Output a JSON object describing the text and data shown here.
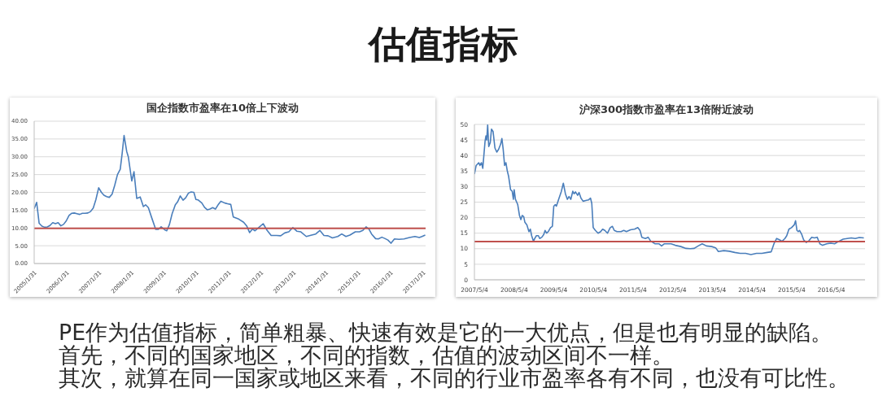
{
  "chart_data": [
    {
      "type": "other",
      "title": "估值指标"
    },
    {
      "type": "line",
      "title": "国企指数市盈率在10倍上下波动",
      "color": "#4a7ebb",
      "x": [
        "2005-01-31",
        "2005-02-28",
        "2005-03-28",
        "2005-04-28",
        "2005-05-28",
        "2005-06-28",
        "2005-07-28",
        "2005-08-28",
        "2005-09-28",
        "2005-10-28",
        "2005-11-28",
        "2005-12-28",
        "2006-01-28",
        "2006-02-28",
        "2006-03-28",
        "2006-04-28",
        "2006-05-28",
        "2006-06-28",
        "2006-07-28",
        "2006-08-28",
        "2006-09-28",
        "2006-10-28",
        "2006-11-28",
        "2006-12-28",
        "2007-01-28",
        "2007-02-28",
        "2007-03-28",
        "2007-04-28",
        "2007-05-28",
        "2007-06-28",
        "2007-07-28",
        "2007-08-28",
        "2007-09-28",
        "2007-10-20",
        "2007-11-10",
        "2007-12-10",
        "2007-12-28",
        "2008-02-05",
        "2008-03-01",
        "2008-04-01",
        "2008-05-10",
        "2008-06-15",
        "2008-07-10",
        "2008-08-10",
        "2008-09-15",
        "2008-11-01",
        "2008-12-01",
        "2009-01-01",
        "2009-02-15",
        "2009-03-05",
        "2009-04-05",
        "2009-05-05",
        "2009-06-10",
        "2009-07-05",
        "2009-08-05",
        "2009-09-05",
        "2009-10-05",
        "2009-11-05",
        "2009-12-05",
        "2010-01-05",
        "2010-01-28",
        "2010-02-20",
        "2010-04-05",
        "2010-05-05",
        "2010-06-05",
        "2010-07-05",
        "2010-08-05",
        "2010-09-05",
        "2010-10-05",
        "2010-11-05",
        "2010-12-20",
        "2011-01-20",
        "2011-02-25",
        "2011-03-25",
        "2011-05-25",
        "2011-07-20",
        "2011-08-25",
        "2011-09-25",
        "2011-10-28",
        "2011-11-25",
        "2012-01-05",
        "2012-02-25",
        "2012-04-10",
        "2012-05-25",
        "2012-07-25",
        "2012-09-10",
        "2012-10-25",
        "2012-12-10",
        "2013-01-25",
        "2013-03-10",
        "2013-04-25",
        "2013-06-25",
        "2013-08-25",
        "2013-10-10",
        "2013-11-25",
        "2014-01-10",
        "2014-02-25",
        "2014-04-15",
        "2014-06-15",
        "2014-07-30",
        "2014-09-15",
        "2014-10-30",
        "2014-12-30",
        "2015-02-15",
        "2015-03-25",
        "2015-04-30",
        "2015-06-01",
        "2015-07-01",
        "2015-08-15",
        "2015-09-15",
        "2015-10-25",
        "2015-12-01",
        "2016-01-01",
        "2016-02-05",
        "2016-03-15",
        "2016-05-05",
        "2016-07-01",
        "2016-09-01",
        "2016-11-01",
        "2016-12-20",
        "2017-01-20",
        "2017-02-25"
      ],
      "values": [
        15.4,
        17.2,
        11.3,
        10.5,
        10.2,
        10.3,
        10.7,
        11.5,
        11.2,
        11.5,
        10.6,
        11.0,
        12.0,
        13.5,
        14.1,
        14.2,
        14.0,
        13.8,
        14.1,
        14.1,
        14.2,
        14.6,
        15.6,
        18.0,
        21.3,
        20.0,
        19.2,
        18.8,
        18.6,
        19.5,
        22.0,
        25.0,
        26.5,
        31.0,
        36.0,
        31.5,
        30.0,
        23.2,
        25.8,
        18.3,
        18.7,
        16.0,
        16.5,
        15.7,
        13.0,
        9.6,
        9.6,
        10.3,
        9.4,
        9.2,
        11.0,
        14.0,
        16.5,
        17.3,
        19.0,
        17.8,
        18.5,
        19.8,
        20.1,
        20.0,
        18.0,
        17.9,
        17.0,
        15.8,
        15.1,
        15.3,
        15.7,
        15.3,
        16.5,
        17.5,
        17.0,
        16.8,
        16.6,
        13.1,
        12.5,
        11.6,
        10.5,
        8.7,
        9.7,
        9.2,
        10.1,
        11.2,
        9.3,
        7.9,
        7.9,
        7.8,
        8.6,
        8.9,
        10.1,
        9.1,
        8.9,
        7.6,
        8.0,
        8.3,
        9.3,
        7.9,
        7.8,
        7.2,
        7.6,
        8.3,
        7.6,
        8.0,
        8.9,
        8.9,
        9.3,
        10.3,
        9.7,
        8.3,
        7.0,
        6.9,
        7.4,
        7.0,
        6.6,
        5.7,
        6.9,
        6.8,
        6.9,
        7.3,
        7.6,
        7.3,
        7.6,
        8.0
      ],
      "xlim": [
        "2005-01-31",
        "2017-03-01"
      ],
      "xticks": [
        {
          "value": "2005-01-31",
          "label": "2005/1/31"
        },
        {
          "value": "2006-01-31",
          "label": "2006/1/31"
        },
        {
          "value": "2007-01-31",
          "label": "2007/1/31"
        },
        {
          "value": "2008-01-31",
          "label": "2008/1/31"
        },
        {
          "value": "2009-01-31",
          "label": "2009/1/31"
        },
        {
          "value": "2010-01-31",
          "label": "2010/1/31"
        },
        {
          "value": "2011-01-31",
          "label": "2011/1/31"
        },
        {
          "value": "2012-01-31",
          "label": "2012/1/31"
        },
        {
          "value": "2013-01-31",
          "label": "2013/1/31"
        },
        {
          "value": "2014-01-31",
          "label": "2014/1/31"
        },
        {
          "value": "2015-01-31",
          "label": "2015/1/31"
        },
        {
          "value": "2016-01-31",
          "label": "2016/1/31"
        },
        {
          "value": "2017-01-31",
          "label": "2017/1/31"
        }
      ],
      "ylim": [
        0,
        40
      ],
      "yticks": [
        {
          "value": 0,
          "label": "0.00"
        },
        {
          "value": 5,
          "label": "5.00"
        },
        {
          "value": 10,
          "label": "10.00"
        },
        {
          "value": 15,
          "label": "15.00"
        },
        {
          "value": 20,
          "label": "20.00"
        },
        {
          "value": 25,
          "label": "25.00"
        },
        {
          "value": 30,
          "label": "30.00"
        },
        {
          "value": 35,
          "label": "35.00"
        },
        {
          "value": 40,
          "label": "40.00"
        }
      ],
      "grid": "y",
      "ref_lines": [
        {
          "axis": "y",
          "value": 9.9,
          "color": "#c0504d"
        }
      ]
    },
    {
      "type": "line",
      "title": "沪深300指数市盈率在13倍附近波动",
      "color": "#4a7ebb",
      "x": [
        "2007-05-04",
        "2007-05-20",
        "2007-06-13",
        "2007-06-24",
        "2007-07-08",
        "2007-07-20",
        "2007-08-10",
        "2007-08-18",
        "2007-08-25",
        "2007-09-03",
        "2007-09-13",
        "2007-09-27",
        "2007-10-08",
        "2007-10-23",
        "2007-11-09",
        "2007-11-26",
        "2007-12-13",
        "2008-01-01",
        "2008-01-12",
        "2008-01-24",
        "2008-02-06",
        "2008-02-18",
        "2008-03-02",
        "2008-03-14",
        "2008-04-01",
        "2008-04-16",
        "2008-04-27",
        "2008-05-04",
        "2008-05-16",
        "2008-06-06",
        "2008-06-22",
        "2008-07-05",
        "2008-07-17",
        "2008-07-31",
        "2008-08-11",
        "2008-08-29",
        "2008-09-17",
        "2008-09-30",
        "2008-10-12",
        "2008-10-29",
        "2008-11-10",
        "2008-11-25",
        "2008-12-13",
        "2008-12-25",
        "2009-01-14",
        "2009-02-01",
        "2009-02-13",
        "2009-02-27",
        "2009-03-14",
        "2009-04-04",
        "2009-04-21",
        "2009-05-04",
        "2009-05-18",
        "2009-05-28",
        "2009-06-18",
        "2009-07-13",
        "2009-07-31",
        "2009-08-19",
        "2009-09-06",
        "2009-09-21",
        "2009-10-08",
        "2009-10-26",
        "2009-11-07",
        "2009-11-20",
        "2009-12-10",
        "2009-12-23",
        "2010-01-09",
        "2010-01-29",
        "2010-02-23",
        "2010-03-20",
        "2010-04-07",
        "2010-04-19",
        "2010-05-02",
        "2010-05-22",
        "2010-06-16",
        "2010-07-10",
        "2010-07-28",
        "2010-08-17",
        "2010-09-11",
        "2010-10-06",
        "2010-10-26",
        "2010-11-12",
        "2010-12-07",
        "2011-01-14",
        "2011-02-08",
        "2011-03-04",
        "2011-04-11",
        "2011-05-18",
        "2011-06-17",
        "2011-07-07",
        "2011-07-24",
        "2011-08-26",
        "2011-09-20",
        "2011-10-15",
        "2011-11-21",
        "2011-12-28",
        "2012-01-22",
        "2012-02-17",
        "2012-03-13",
        "2012-04-19",
        "2012-05-27",
        "2012-07-17",
        "2012-09-03",
        "2012-10-12",
        "2012-11-18",
        "2012-12-24",
        "2013-01-30",
        "2013-03-10",
        "2013-04-28",
        "2013-06-03",
        "2013-06-28",
        "2013-08-17",
        "2013-10-07",
        "2013-11-26",
        "2014-01-15",
        "2014-03-06",
        "2014-04-24",
        "2014-06-14",
        "2014-08-03",
        "2014-09-21",
        "2014-10-28",
        "2014-11-22",
        "2014-12-17",
        "2015-01-11",
        "2015-02-05",
        "2015-03-03",
        "2015-03-20",
        "2015-04-09",
        "2015-05-03",
        "2015-05-28",
        "2015-06-09",
        "2015-06-22",
        "2015-07-04",
        "2015-07-16",
        "2015-08-05",
        "2015-08-22",
        "2015-09-16",
        "2015-10-11",
        "2015-11-05",
        "2015-11-30",
        "2015-12-25",
        "2016-01-19",
        "2016-02-13",
        "2016-03-22",
        "2016-04-29",
        "2016-06-05",
        "2016-07-12",
        "2016-08-21",
        "2016-09-27",
        "2016-11-03",
        "2016-12-10",
        "2017-01-16",
        "2017-02-27"
      ],
      "values": [
        34.0,
        36.8,
        37.7,
        36.8,
        37.7,
        35.9,
        44.6,
        46.3,
        45.0,
        49.8,
        42.9,
        44.2,
        48.5,
        47.7,
        42.4,
        41.1,
        42.0,
        43.7,
        45.5,
        42.0,
        36.8,
        37.7,
        35.0,
        33.3,
        29.0,
        28.5,
        25.9,
        29.0,
        25.9,
        24.2,
        20.7,
        19.4,
        20.7,
        20.3,
        18.5,
        17.7,
        15.5,
        16.3,
        14.2,
        12.4,
        13.3,
        14.2,
        14.2,
        13.3,
        13.7,
        14.6,
        15.9,
        15.0,
        15.5,
        16.8,
        17.2,
        23.7,
        24.2,
        23.7,
        25.9,
        28.5,
        31.1,
        27.7,
        25.9,
        26.8,
        25.9,
        28.5,
        27.7,
        28.3,
        27.2,
        28.1,
        26.3,
        25.3,
        25.5,
        25.7,
        26.3,
        24.6,
        16.8,
        15.9,
        15.0,
        15.5,
        16.3,
        15.9,
        15.0,
        16.8,
        17.2,
        15.9,
        15.5,
        15.5,
        15.9,
        15.5,
        16.1,
        16.3,
        16.8,
        15.9,
        13.7,
        13.3,
        13.7,
        12.4,
        11.6,
        11.6,
        10.9,
        11.6,
        11.6,
        11.6,
        11.1,
        10.7,
        10.1,
        10.0,
        10.1,
        10.9,
        11.6,
        10.9,
        10.7,
        10.3,
        9.1,
        9.4,
        9.2,
        8.8,
        8.5,
        8.5,
        8.1,
        8.5,
        8.5,
        8.8,
        9.0,
        11.6,
        13.3,
        12.9,
        12.4,
        13.3,
        14.2,
        16.3,
        16.8,
        17.7,
        19.0,
        15.9,
        15.5,
        15.9,
        14.6,
        12.9,
        12.0,
        12.6,
        13.7,
        13.5,
        13.7,
        11.6,
        11.1,
        11.6,
        11.8,
        11.6,
        12.4,
        13.1,
        13.3,
        13.5,
        13.3,
        13.6,
        13.5
      ],
      "xlim": [
        "2007-05-04",
        "2017-03-10"
      ],
      "xticks": [
        {
          "value": "2007-05-04",
          "label": "2007/5/4"
        },
        {
          "value": "2008-05-04",
          "label": "2008/5/4"
        },
        {
          "value": "2009-05-04",
          "label": "2009/5/4"
        },
        {
          "value": "2010-05-04",
          "label": "2010/5/4"
        },
        {
          "value": "2011-05-04",
          "label": "2011/5/4"
        },
        {
          "value": "2012-05-04",
          "label": "2012/5/4"
        },
        {
          "value": "2013-05-04",
          "label": "2013/5/4"
        },
        {
          "value": "2014-05-04",
          "label": "2014/5/4"
        },
        {
          "value": "2015-05-04",
          "label": "2015/5/4"
        },
        {
          "value": "2016-05-04",
          "label": "2016/5/4"
        }
      ],
      "ylim": [
        0,
        50
      ],
      "yticks": [
        0,
        5,
        10,
        15,
        20,
        25,
        30,
        35,
        40,
        45,
        50
      ],
      "grid": "y",
      "ref_lines": [
        {
          "axis": "y",
          "value": 12.3,
          "color": "#c0504d"
        }
      ]
    },
    {
      "type": "other",
      "annotations": [
        "PE作为估值指标，简单粗暴、快速有效是它的一大优点，但是也有明显的缺陷。",
        "首先，不同的国家地区，不同的指数，估值的波动区间不一样。",
        "其次，就算在同一国家或地区来看，不同的行业市盈率各有不同，也没有可比性。"
      ]
    }
  ]
}
